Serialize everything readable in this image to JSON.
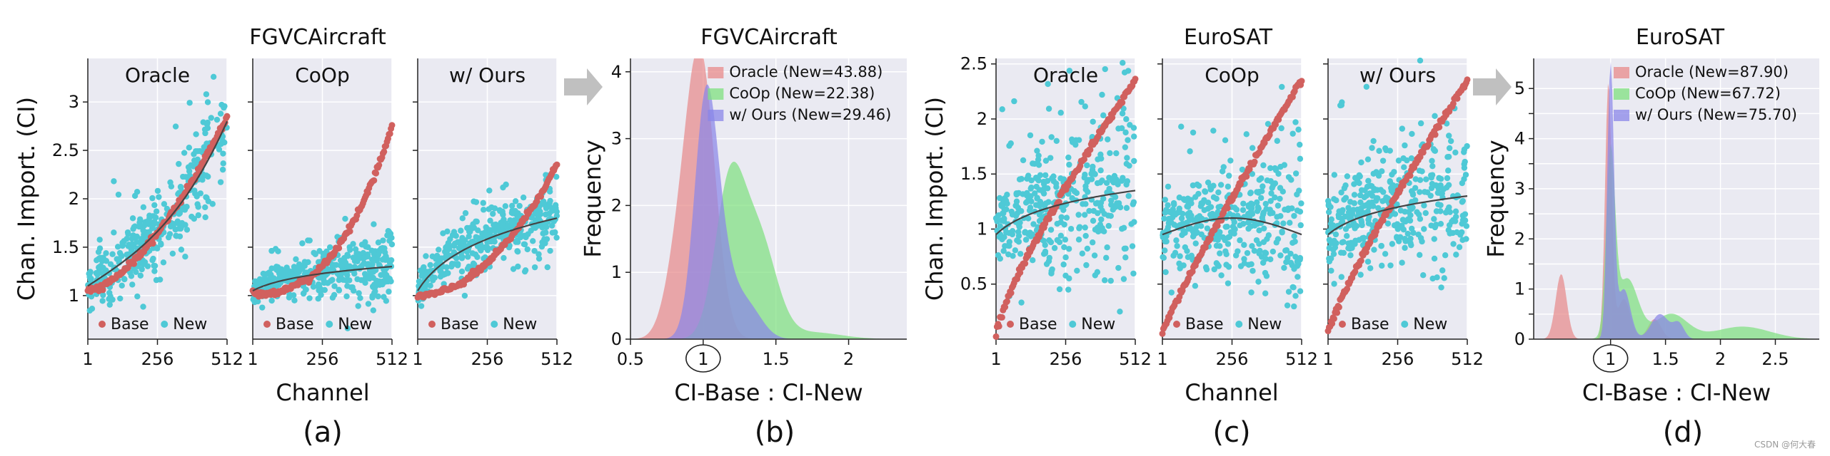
{
  "figure": {
    "panel_letters": [
      "(a)",
      "(b)",
      "(c)",
      "(d)"
    ],
    "watermark": "CSDN @何大春"
  },
  "colors": {
    "plot_bg": "#eaeaf2",
    "grid": "#ffffff",
    "base": "#d1605e",
    "new": "#4ec9d6",
    "trend": "#444444",
    "arrow": "#c0c0c0",
    "oracle_fill": "#e88a8a",
    "coop_fill": "#7fe07f",
    "ours_fill": "#8a86e8"
  },
  "chart_data": [
    {
      "type": "scatter",
      "group_title": "FGVCAircraft",
      "panel": "(a)",
      "ylabel": "Chan. Import. (CI)",
      "xlabel": "Channel",
      "xticks": [
        "1",
        "256",
        "512"
      ],
      "xlim": [
        1,
        512
      ],
      "ylim": [
        0.55,
        3.45
      ],
      "yticks": [
        1,
        1.5,
        2,
        2.5,
        3
      ],
      "yticklabels": [
        "1",
        "1.5",
        "2",
        "2.5",
        "3"
      ],
      "legend": [
        "Base",
        "New"
      ],
      "subplots": [
        {
          "title": "Oracle",
          "base_curve": {
            "start": 1.05,
            "end": 2.85,
            "power": 1.6
          },
          "new_trend": {
            "start": 1.1,
            "end": 2.8,
            "shape": "convex"
          },
          "new_spread": 0.28
        },
        {
          "title": "CoOp",
          "base_curve": {
            "start": 1.02,
            "end": 2.75,
            "power": 2.6
          },
          "new_trend": {
            "start": 1.05,
            "end": 1.3,
            "shape": "log"
          },
          "new_spread": 0.18
        },
        {
          "title": "w/ Ours",
          "base_curve": {
            "start": 1.0,
            "end": 2.35,
            "power": 2.0
          },
          "new_trend": {
            "start": 1.05,
            "end": 1.8,
            "shape": "log"
          },
          "new_spread": 0.2
        }
      ]
    },
    {
      "type": "area",
      "panel": "(b)",
      "title": "FGVCAircraft",
      "xlabel": "CI-Base : CI-New",
      "ylabel": "Frequency",
      "xlim": [
        0.5,
        2.4
      ],
      "ylim": [
        0,
        4.2
      ],
      "xticks": [
        0.5,
        1,
        1.5,
        2
      ],
      "xticklabels": [
        "0.5",
        "1",
        "1.5",
        "2"
      ],
      "yticks": [
        0,
        1,
        2,
        3,
        4
      ],
      "yticklabels": [
        "0",
        "1",
        "2",
        "3",
        "4"
      ],
      "circled_tick": "1",
      "series": [
        {
          "name": "Oracle (New=43.88)",
          "components": [
            [
              0.98,
              0.1,
              4.2
            ],
            [
              0.82,
              0.09,
              0.9
            ]
          ]
        },
        {
          "name": "CoOp (New=22.38)",
          "components": [
            [
              1.18,
              0.1,
              2.2
            ],
            [
              1.38,
              0.12,
              1.5
            ],
            [
              1.75,
              0.2,
              0.1
            ]
          ]
        },
        {
          "name": "w/ Ours (New=29.46)",
          "components": [
            [
              1.02,
              0.08,
              3.6
            ],
            [
              1.15,
              0.08,
              0.7
            ],
            [
              1.3,
              0.1,
              0.5
            ]
          ]
        }
      ]
    },
    {
      "type": "scatter",
      "group_title": "EuroSAT",
      "panel": "(c)",
      "ylabel": "Chan. Import. (CI)",
      "xlabel": "Channel",
      "xticks": [
        "1",
        "256",
        "512"
      ],
      "xlim": [
        1,
        512
      ],
      "ylim": [
        0,
        2.55
      ],
      "yticks": [
        0.5,
        1,
        1.5,
        2,
        2.5
      ],
      "yticklabels": [
        "0.5",
        "1",
        "1.5",
        "2",
        "2.5"
      ],
      "legend": [
        "Base",
        "New"
      ],
      "subplots": [
        {
          "title": "Oracle",
          "base_curve": {
            "start": 0.05,
            "end": 2.35,
            "power": 0.8
          },
          "new_trend": {
            "start": 0.95,
            "end": 1.35,
            "shape": "log"
          },
          "new_spread": 0.45
        },
        {
          "title": "CoOp",
          "base_curve": {
            "start": 0.05,
            "end": 2.35,
            "power": 0.9
          },
          "new_trend": {
            "start": 0.95,
            "end": 0.95,
            "shape": "hump"
          },
          "new_spread": 0.35
        },
        {
          "title": "w/ Ours",
          "base_curve": {
            "start": 0.05,
            "end": 2.35,
            "power": 0.85
          },
          "new_trend": {
            "start": 0.95,
            "end": 1.3,
            "shape": "log"
          },
          "new_spread": 0.4
        }
      ]
    },
    {
      "type": "area",
      "panel": "(d)",
      "title": "EuroSAT",
      "xlabel": "CI-Base : CI-New",
      "ylabel": "Frequency",
      "xlim": [
        0.3,
        2.9
      ],
      "ylim": [
        0,
        5.6
      ],
      "xticks": [
        1,
        1.5,
        2,
        2.5
      ],
      "xticklabels": [
        "1",
        "1.5",
        "2",
        "2.5"
      ],
      "yticks": [
        0,
        0.5,
        1,
        1.5,
        2,
        2.5,
        3,
        3.5,
        4,
        4.5,
        5
      ],
      "yticklabels": [
        "0",
        "",
        "1",
        "",
        "2",
        "",
        "3",
        "",
        "4",
        "",
        "5"
      ],
      "circled_tick": "1",
      "series": [
        {
          "name": "Oracle (New=87.90)",
          "components": [
            [
              0.98,
              0.03,
              5.1
            ],
            [
              0.55,
              0.05,
              1.3
            ],
            [
              1.12,
              0.06,
              0.8
            ],
            [
              1.4,
              0.06,
              0.4
            ]
          ]
        },
        {
          "name": "CoOp (New=67.72)",
          "components": [
            [
              1.0,
              0.04,
              3.5
            ],
            [
              1.15,
              0.1,
              1.2
            ],
            [
              1.55,
              0.15,
              0.5
            ],
            [
              2.2,
              0.25,
              0.25
            ]
          ]
        },
        {
          "name": "w/ Ours (New=75.70)",
          "components": [
            [
              1.0,
              0.03,
              5.4
            ],
            [
              1.12,
              0.06,
              1.0
            ],
            [
              1.45,
              0.08,
              0.5
            ],
            [
              1.62,
              0.05,
              0.3
            ]
          ]
        }
      ]
    }
  ]
}
